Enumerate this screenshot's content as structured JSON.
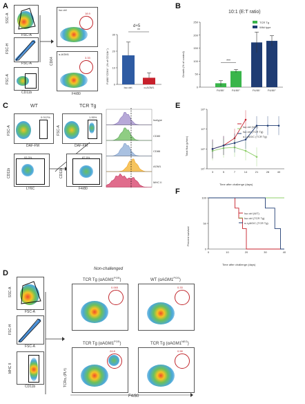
{
  "figure": {
    "panels": [
      "A",
      "B",
      "C",
      "D",
      "E",
      "F"
    ],
    "colors": {
      "bar_blue": "#2e5ba3",
      "bar_red": "#c7202b",
      "bar_green": "#39b54a",
      "navy": "#1f3c73",
      "light_green": "#8fcf6a",
      "gate_red": "#c1272d"
    }
  },
  "panelA": {
    "iso_label": "Iso ctrl",
    "agm1_label": "α-AGM1",
    "gate1_pct": "18.9",
    "gate2_pct": "3.33",
    "flow_axes": {
      "ssc": "SSC-A",
      "fsc_a": "FSC-A",
      "fsc_h": "FSC-H",
      "fsc_a2": "FSC-A",
      "cd11b": "CD11b",
      "f480": "F4/80",
      "cd64": "CD64"
    },
    "ticks_y": [
      "1.2M",
      "900K",
      "600K",
      "300K",
      "0"
    ],
    "ticks_x_log": [
      "10⁰",
      "10³",
      "10⁴",
      "10⁵"
    ],
    "ticks_x_lin": [
      "0",
      "300K",
      "900K"
    ]
  },
  "panelB": {
    "title": "10:1 (E:T ratio)",
    "ylabel": "Growth (% of control)",
    "legend": [
      "TCR Tg",
      "Wild type"
    ],
    "sig": "***",
    "xlabels": [
      "F4/80⁻",
      "F4/80⁺",
      "F4/80⁻",
      "F4/80⁺"
    ]
  },
  "panelC": {
    "wt_label": "WT",
    "tcr_label": "TCR Tg",
    "pct_wt": "0.012%",
    "pct_tcr": "1.95%",
    "pct_ly6c": "93.3%",
    "pct_f480": "87.9%",
    "axes": {
      "fsc": "FSC-A",
      "daf": "DAF-FM",
      "cd11b": "CD11b",
      "ly6c": "LY6C",
      "f480": "F4/80"
    },
    "histograms": [
      "Isotype",
      "CD80",
      "CD86",
      "AGM1",
      "MHC II"
    ]
  },
  "panelD": {
    "non_challenged": "Non-challenged",
    "titles": [
      "TCR Tg (αAGM1",
      "WT (αAGM1",
      "TCR Tg (αAGM1",
      "TCR Tg (αAGM1"
    ],
    "supers": [
      "POS",
      "POS",
      "POS",
      "NEG"
    ],
    "closers": [
      ")",
      ")",
      ")",
      ")"
    ],
    "pcts": [
      "0.065",
      "0.33",
      "24.8",
      "0.58"
    ],
    "axes": {
      "ssc": "SSC-A",
      "fsc_a": "FSC-A",
      "fsc_h": "FSC-H",
      "fsc_a2": "FSC-A",
      "mhc": "MHC II",
      "cd11b": "CD11b",
      "tcr": "TCRαᵥ (PLᴺ)",
      "f480": "F4/80"
    }
  },
  "panelE": {
    "ylabel": "Total flux (p/sec)",
    "xlabel": "Time after challenge (days)",
    "legend": [
      "Iso ctrl (WT)",
      "Iso ctrl (TCR Tg)",
      "α-Ly6G/C (TCR Tg)"
    ],
    "xticks": [
      "3",
      "5",
      "7",
      "14",
      "21",
      "28",
      "40"
    ],
    "yticks": [
      "10⁸",
      "10⁷",
      "10⁶",
      "10⁵"
    ]
  },
  "panelF": {
    "ylabel": "Percent survival",
    "xlabel": "Time after challenge (days)",
    "legend": [
      "Iso ctrl (WT)",
      "Iso ctrl (TCR Tg)",
      "α-Ly6G/C (TCR Tg)"
    ],
    "xticks": [
      "0",
      "10",
      "20",
      "30",
      "40"
    ],
    "yticks": [
      "100",
      "50",
      "0"
    ]
  },
  "chart_data": [
    {
      "type": "bar",
      "title": "d+5",
      "ylabel": "F4/80⁺CD64⁺ (% of CD11b⁺)",
      "categories": [
        "Iso ctrl.",
        "α-AGM1"
      ],
      "values": [
        17.5,
        4
      ],
      "errors": [
        8,
        3
      ],
      "ylim": [
        0,
        30
      ],
      "yticks": [
        "0",
        "10",
        "20",
        "30"
      ],
      "annotation": "**"
    },
    {
      "type": "bar",
      "title": "10:1 (E:T ratio)",
      "ylabel": "Growth (% of control)",
      "categories": [
        "F4/80⁻",
        "F4/80⁺",
        "F4/80⁻",
        "F4/80⁺"
      ],
      "series": [
        {
          "name": "TCR Tg",
          "values": [
            15,
            62,
            null,
            null
          ],
          "errors": [
            10,
            6,
            null,
            null
          ]
        },
        {
          "name": "Wild type",
          "values": [
            null,
            null,
            172,
            178
          ],
          "errors": [
            null,
            null,
            40,
            20
          ]
        }
      ],
      "ylim": [
        0,
        250
      ],
      "yticks": [
        "0",
        "50",
        "100",
        "150",
        "200",
        "250"
      ]
    },
    {
      "type": "line",
      "ylabel": "Total flux (p/sec)",
      "xlabel": "Time after challenge (days)",
      "x": [
        3,
        5,
        7,
        14,
        21,
        28,
        40
      ],
      "series": [
        {
          "name": "Iso ctrl (WT)",
          "values": [
            1000000,
            1500000,
            3500000,
            30000000,
            null,
            null,
            null
          ]
        },
        {
          "name": "Iso ctrl (TCR Tg)",
          "values": [
            800000,
            1100000,
            1200000,
            800000,
            400000,
            null,
            null
          ]
        },
        {
          "name": "α-Ly6G/C (TCR Tg)",
          "values": [
            1000000,
            1500000,
            2000000,
            3000000,
            15000000,
            15000000,
            15000000
          ]
        }
      ],
      "yscale": "log",
      "ylim": [
        100000,
        100000000
      ]
    },
    {
      "type": "line",
      "ylabel": "Percent survival",
      "xlabel": "Time after challenge (days)",
      "x": [
        0,
        10,
        14,
        16,
        18,
        20,
        25,
        30,
        35,
        38,
        40
      ],
      "series": [
        {
          "name": "Iso ctrl (WT)",
          "values": [
            100,
            100,
            80,
            60,
            40,
            0,
            0,
            0,
            0,
            0,
            0
          ]
        },
        {
          "name": "Iso ctrl (TCR Tg)",
          "values": [
            100,
            100,
            100,
            100,
            100,
            100,
            100,
            100,
            100,
            100,
            100
          ]
        },
        {
          "name": "α-Ly6G/C (TCR Tg)",
          "values": [
            100,
            100,
            100,
            100,
            100,
            100,
            100,
            80,
            40,
            0,
            0
          ]
        }
      ],
      "ylim": [
        0,
        100
      ]
    }
  ]
}
